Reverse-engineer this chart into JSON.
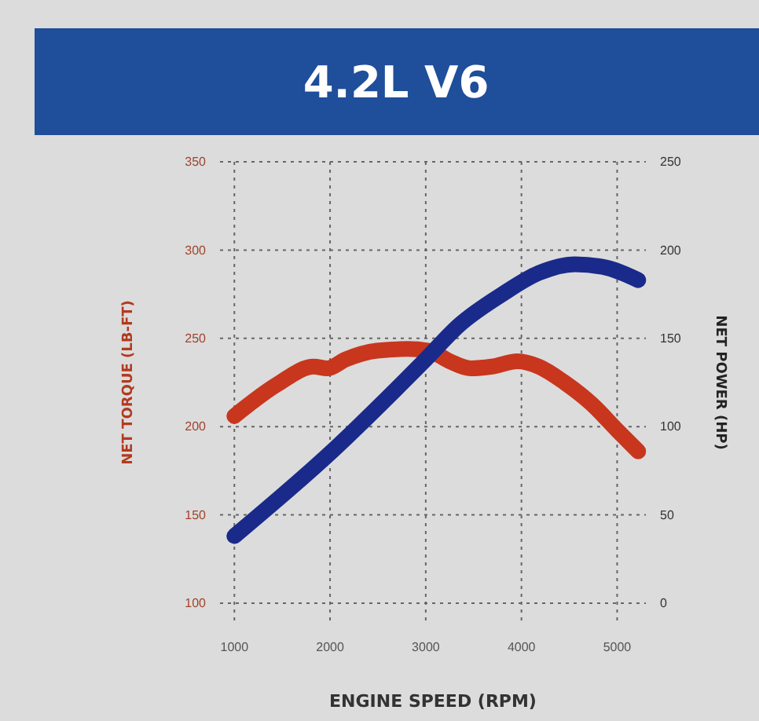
{
  "chart_data": {
    "type": "line",
    "title": "4.2L V6",
    "xlabel": "ENGINE SPEED (RPM)",
    "ylabel": "NET TORQUE (LB-FT)",
    "y2label": "NET POWER (HP)",
    "xlim": [
      850,
      5300
    ],
    "xticks": [
      1000,
      2000,
      3000,
      4000,
      5000
    ],
    "ylim": [
      100,
      350
    ],
    "yticks": [
      100,
      150,
      200,
      250,
      300,
      350
    ],
    "y2lim": [
      0,
      250
    ],
    "y2ticks": [
      0,
      50,
      100,
      150,
      200,
      250
    ],
    "grid": true,
    "line_style": "solid",
    "series": [
      {
        "color": "#c8361e",
        "x": [
          1000,
          1450,
          1830,
          1970,
          2160,
          2490,
          2810,
          3030,
          3250,
          3470,
          3690,
          3960,
          4180,
          4450,
          4730,
          5000,
          5220
        ],
        "values": [
          206,
          224,
          234,
          233,
          238,
          243,
          244,
          243,
          237,
          233,
          234,
          237,
          234,
          225,
          213,
          198,
          186
        ]
      },
      {
        "color": "#1a2a8a",
        "axis": "y2",
        "x": [
          1000,
          2000,
          2980,
          3360,
          3800,
          4180,
          4560,
          4890,
          5220
        ],
        "values": [
          38,
          85,
          137,
          158,
          175,
          187,
          192,
          190,
          183
        ]
      }
    ]
  }
}
